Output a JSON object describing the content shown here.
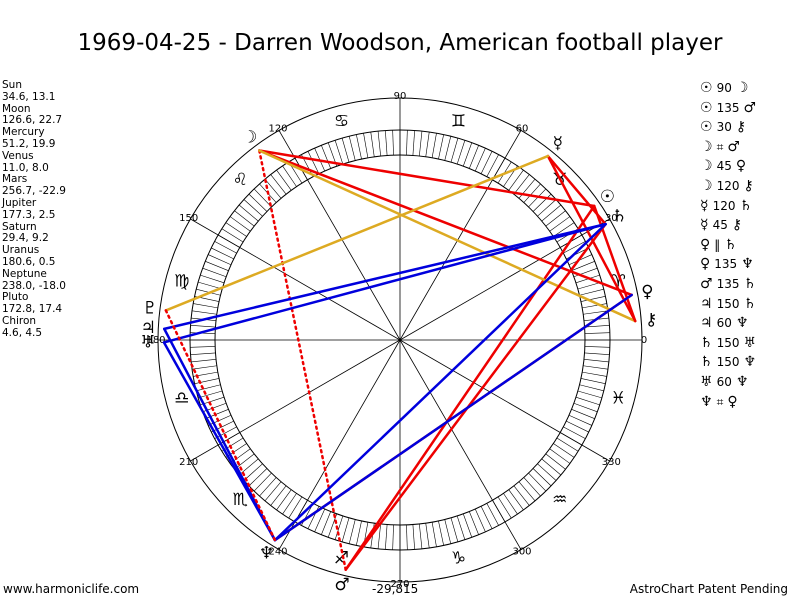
{
  "title": "1969-04-25 - Darren Woodson, American football player",
  "planets": [
    {
      "name": "Sun",
      "values": "34.6, 13.1"
    },
    {
      "name": "Moon",
      "values": "126.6, 22.7"
    },
    {
      "name": "Mercury",
      "values": "51.2, 19.9"
    },
    {
      "name": "Venus",
      "values": "11.0, 8.0"
    },
    {
      "name": "Mars",
      "values": "256.7, -22.9"
    },
    {
      "name": "Jupiter",
      "values": "177.3, 2.5"
    },
    {
      "name": "Saturn",
      "values": "29.4, 9.2"
    },
    {
      "name": "Uranus",
      "values": "180.6, 0.5"
    },
    {
      "name": "Neptune",
      "values": "238.0, -18.0"
    },
    {
      "name": "Pluto",
      "values": "172.8, 17.4"
    },
    {
      "name": "Chiron",
      "values": "4.6, 4.5"
    }
  ],
  "aspects": [
    {
      "p1": "☉",
      "orb": "90",
      "p2": "☽"
    },
    {
      "p1": "☉",
      "orb": "135",
      "p2": "♂"
    },
    {
      "p1": "☉",
      "orb": "30",
      "p2": "⚷"
    },
    {
      "p1": "☽",
      "orb": "⌗",
      "p2": "♂"
    },
    {
      "p1": "☽",
      "orb": "45",
      "p2": "♀"
    },
    {
      "p1": "☽",
      "orb": "120",
      "p2": "⚷"
    },
    {
      "p1": "☿",
      "orb": "120",
      "p2": "♄"
    },
    {
      "p1": "☿",
      "orb": "45",
      "p2": "⚷"
    },
    {
      "p1": "♀",
      "orb": "‖",
      "p2": "♄"
    },
    {
      "p1": "♀",
      "orb": "135",
      "p2": "♆"
    },
    {
      "p1": "♂",
      "orb": "135",
      "p2": "♄"
    },
    {
      "p1": "♃",
      "orb": "150",
      "p2": "♄"
    },
    {
      "p1": "♃",
      "orb": "60",
      "p2": "♆"
    },
    {
      "p1": "♄",
      "orb": "150",
      "p2": "♅"
    },
    {
      "p1": "♄",
      "orb": "150",
      "p2": "♆"
    },
    {
      "p1": "♅",
      "orb": "60",
      "p2": "♆"
    },
    {
      "p1": "♆",
      "orb": "⌗",
      "p2": "♀"
    }
  ],
  "footer": {
    "website": "www.harmoniclife.com",
    "code": "-29,815",
    "patent": "AstroChart Patent Pending"
  },
  "chart_data": {
    "type": "wheel",
    "degree_labels": [
      "0",
      "30",
      "60",
      "90",
      "120",
      "150",
      "180",
      "210",
      "240",
      "270",
      "300",
      "330"
    ],
    "signs": [
      {
        "name": "aries",
        "glyph": "♈"
      },
      {
        "name": "taurus",
        "glyph": "♉"
      },
      {
        "name": "gemini",
        "glyph": "♊"
      },
      {
        "name": "cancer",
        "glyph": "♋"
      },
      {
        "name": "leo",
        "glyph": "♌"
      },
      {
        "name": "virgo",
        "glyph": "♍"
      },
      {
        "name": "libra",
        "glyph": "♎"
      },
      {
        "name": "scorpio",
        "glyph": "♏"
      },
      {
        "name": "sagittarius",
        "glyph": "♐"
      },
      {
        "name": "capricorn",
        "glyph": "♑"
      },
      {
        "name": "aquarius",
        "glyph": "♒"
      },
      {
        "name": "pisces",
        "glyph": "♓"
      }
    ],
    "bodies": [
      {
        "name": "sun",
        "glyph": "☉",
        "lon": 34.6
      },
      {
        "name": "moon",
        "glyph": "☽",
        "lon": 126.6
      },
      {
        "name": "mercury",
        "glyph": "☿",
        "lon": 51.2
      },
      {
        "name": "venus",
        "glyph": "♀",
        "lon": 11.0
      },
      {
        "name": "mars",
        "glyph": "♂",
        "lon": 256.7
      },
      {
        "name": "jupiter",
        "glyph": "♃",
        "lon": 177.3
      },
      {
        "name": "saturn",
        "glyph": "♄",
        "lon": 29.4
      },
      {
        "name": "uranus",
        "glyph": "♅",
        "lon": 180.6
      },
      {
        "name": "neptune",
        "glyph": "♆",
        "lon": 238.0
      },
      {
        "name": "pluto",
        "glyph": "♇",
        "lon": 172.8
      },
      {
        "name": "chiron",
        "glyph": "⚷",
        "lon": 4.6
      }
    ],
    "aspect_lines": [
      {
        "from": "sun",
        "to": "moon",
        "color": "#ee0000",
        "style": "solid"
      },
      {
        "from": "sun",
        "to": "mars",
        "color": "#ee0000",
        "style": "solid"
      },
      {
        "from": "sun",
        "to": "chiron",
        "color": "#ee0000",
        "style": "solid"
      },
      {
        "from": "moon",
        "to": "mars",
        "color": "#ee0000",
        "style": "dotted"
      },
      {
        "from": "moon",
        "to": "venus",
        "color": "#ee0000",
        "style": "solid"
      },
      {
        "from": "moon",
        "to": "chiron",
        "color": "#ddaa22",
        "style": "solid"
      },
      {
        "from": "mercury",
        "to": "saturn",
        "color": "#ee0000",
        "style": "solid"
      },
      {
        "from": "mercury",
        "to": "chiron",
        "color": "#ee0000",
        "style": "solid"
      },
      {
        "from": "venus",
        "to": "neptune",
        "color": "#ee0000",
        "style": "solid"
      },
      {
        "from": "mars",
        "to": "saturn",
        "color": "#ee0000",
        "style": "solid"
      },
      {
        "from": "jupiter",
        "to": "saturn",
        "color": "#0000dd",
        "style": "solid"
      },
      {
        "from": "jupiter",
        "to": "neptune",
        "color": "#0000dd",
        "style": "solid"
      },
      {
        "from": "saturn",
        "to": "uranus",
        "color": "#0000dd",
        "style": "solid"
      },
      {
        "from": "saturn",
        "to": "neptune",
        "color": "#0000dd",
        "style": "solid"
      },
      {
        "from": "uranus",
        "to": "neptune",
        "color": "#0000dd",
        "style": "solid"
      },
      {
        "from": "neptune",
        "to": "venus",
        "color": "#0000dd",
        "style": "solid"
      },
      {
        "from": "pluto",
        "to": "mercury",
        "color": "#ddaa22",
        "style": "solid"
      },
      {
        "from": "pluto",
        "to": "neptune",
        "color": "#ee0000",
        "style": "dotted"
      }
    ]
  }
}
